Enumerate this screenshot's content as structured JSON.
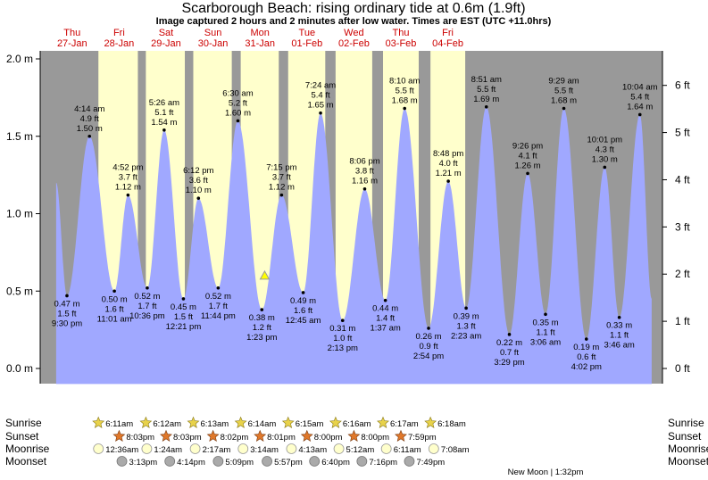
{
  "header": {
    "title": "Scarborough Beach: rising  ordinary tide at 0.6m (1.9ft)",
    "subtitle": "Image captured 2 hours and 2 minutes after low water. Times are EST (UTC +11.0hrs)"
  },
  "colors": {
    "night": "#999999",
    "day": "#ffffcc",
    "tide": "#a0a8ff",
    "day_label": "#cc0000",
    "marker": "#ffff00"
  },
  "chart_data": {
    "type": "area",
    "title": "Scarborough Beach: rising  ordinary tide at 0.6m (1.9ft)",
    "units_left": "m",
    "units_right": "ft",
    "ylim": [
      -0.15,
      2.07
    ],
    "left_ticks": [
      {
        "value": 0.0,
        "label": "0.0 m"
      },
      {
        "value": 0.5,
        "label": "0.5 m"
      },
      {
        "value": 1.0,
        "label": "1.0 m"
      },
      {
        "value": 1.5,
        "label": "1.5 m"
      },
      {
        "value": 2.0,
        "label": "2.0 m"
      }
    ],
    "right_ticks": [
      {
        "value": 0,
        "label": "0 ft"
      },
      {
        "value": 1,
        "label": "1 ft"
      },
      {
        "value": 2,
        "label": "2 ft"
      },
      {
        "value": 3,
        "label": "3 ft"
      },
      {
        "value": 4,
        "label": "4 ft"
      },
      {
        "value": 5,
        "label": "5 ft"
      },
      {
        "value": 6,
        "label": "6 ft"
      }
    ],
    "days": [
      {
        "dow": "Thu",
        "date": "27-Jan",
        "t": 0.68
      },
      {
        "dow": "Fri",
        "date": "28-Jan",
        "t": 1.68
      },
      {
        "dow": "Sat",
        "date": "29-Jan",
        "t": 2.68
      },
      {
        "dow": "Sun",
        "date": "30-Jan",
        "t": 3.68
      },
      {
        "dow": "Mon",
        "date": "31-Jan",
        "t": 4.68
      },
      {
        "dow": "Tue",
        "date": "01-Feb",
        "t": 5.68
      },
      {
        "dow": "Wed",
        "date": "02-Feb",
        "t": 6.68
      },
      {
        "dow": "Thu",
        "date": "03-Feb",
        "t": 7.68
      },
      {
        "dow": "Fri",
        "date": "04-Feb",
        "t": 8.68
      }
    ],
    "current": {
      "t": 4.78,
      "h": 0.6
    },
    "tides": [
      {
        "t": 0.34,
        "h": 1.2,
        "label": [
          "",
          "",
          ""
        ],
        "side": "none"
      },
      {
        "t": 0.57,
        "h": 0.47,
        "label": [
          "0.47 m",
          "1.5 ft",
          "9:30 pm"
        ],
        "side": "below"
      },
      {
        "t": 1.05,
        "h": 1.5,
        "label": [
          "4:14 am",
          "4.9 ft",
          "1.50 m"
        ],
        "side": "above"
      },
      {
        "t": 1.58,
        "h": 0.5,
        "label": [
          "0.50 m",
          "1.6 ft",
          "11:01 am"
        ],
        "side": "below"
      },
      {
        "t": 1.87,
        "h": 1.12,
        "label": [
          "4:52 pm",
          "3.7 ft",
          "1.12 m"
        ],
        "side": "above"
      },
      {
        "t": 2.28,
        "h": 0.52,
        "label": [
          "0.52 m",
          "1.7 ft",
          "10:36 pm"
        ],
        "side": "below"
      },
      {
        "t": 2.64,
        "h": 1.54,
        "label": [
          "5:26 am",
          "5.1 ft",
          "1.54 m"
        ],
        "side": "above"
      },
      {
        "t": 3.05,
        "h": 0.45,
        "label": [
          "0.45 m",
          "1.5 ft",
          "12:21 pm"
        ],
        "side": "below"
      },
      {
        "t": 3.37,
        "h": 1.1,
        "label": [
          "6:12 pm",
          "3.6 ft",
          "1.10 m"
        ],
        "side": "above"
      },
      {
        "t": 3.79,
        "h": 0.52,
        "label": [
          "0.52 m",
          "1.7 ft",
          "11:44 pm"
        ],
        "side": "below"
      },
      {
        "t": 4.21,
        "h": 1.6,
        "label": [
          "6:30 am",
          "5.2 ft",
          "1.60 m"
        ],
        "side": "above"
      },
      {
        "t": 4.72,
        "h": 0.38,
        "label": [
          "0.38 m",
          "1.2 ft",
          "1:23 pm"
        ],
        "side": "below"
      },
      {
        "t": 5.14,
        "h": 1.12,
        "label": [
          "7:15 pm",
          "3.7 ft",
          "1.12 m"
        ],
        "side": "above"
      },
      {
        "t": 5.6,
        "h": 0.49,
        "label": [
          "0.49 m",
          "1.6 ft",
          "12:45 am"
        ],
        "side": "below"
      },
      {
        "t": 5.97,
        "h": 1.65,
        "label": [
          "7:24 am",
          "5.4 ft",
          "1.65 m"
        ],
        "side": "above"
      },
      {
        "t": 6.44,
        "h": 0.31,
        "label": [
          "0.31 m",
          "1.0 ft",
          "2:13 pm"
        ],
        "side": "below"
      },
      {
        "t": 6.91,
        "h": 1.16,
        "label": [
          "8:06 pm",
          "3.8 ft",
          "1.16 m"
        ],
        "side": "above"
      },
      {
        "t": 7.35,
        "h": 0.44,
        "label": [
          "0.44 m",
          "1.4 ft",
          "1:37 am"
        ],
        "side": "below"
      },
      {
        "t": 7.76,
        "h": 1.68,
        "label": [
          "8:10 am",
          "5.5 ft",
          "1.68 m"
        ],
        "side": "above"
      },
      {
        "t": 8.27,
        "h": 0.26,
        "label": [
          "0.26 m",
          "0.9 ft",
          "2:54 pm"
        ],
        "side": "below"
      },
      {
        "t": 8.69,
        "h": 1.21,
        "label": [
          "8:48 pm",
          "4.0 ft",
          "1.21 m"
        ],
        "side": "above"
      },
      {
        "t": 9.07,
        "h": 0.39,
        "label": [
          "0.39 m",
          "1.3 ft",
          "2:23 am"
        ],
        "side": "below"
      },
      {
        "t": 9.5,
        "h": 1.69,
        "label": [
          "8:51 am",
          "5.5 ft",
          "1.69 m"
        ],
        "side": "above"
      },
      {
        "t": 9.99,
        "h": 0.22,
        "label": [
          "0.22 m",
          "0.7 ft",
          "3:29 pm"
        ],
        "side": "below"
      },
      {
        "t": 10.38,
        "h": 1.26,
        "label": [
          "9:26 pm",
          "4.1 ft",
          "1.26 m"
        ],
        "side": "above"
      },
      {
        "t": 10.76,
        "h": 0.35,
        "label": [
          "0.35 m",
          "1.1 ft",
          "3:06 am"
        ],
        "side": "below"
      },
      {
        "t": 11.15,
        "h": 1.68,
        "label": [
          "9:29 am",
          "5.5 ft",
          "1.68 m"
        ],
        "side": "above"
      },
      {
        "t": 11.63,
        "h": 0.19,
        "label": [
          "0.19 m",
          "0.6 ft",
          "4:02 pm"
        ],
        "side": "below"
      },
      {
        "t": 12.02,
        "h": 1.3,
        "label": [
          "10:01 pm",
          "4.3 ft",
          "1.30 m"
        ],
        "side": "above"
      },
      {
        "t": 12.33,
        "h": 0.33,
        "label": [
          "0.33 m",
          "1.1 ft",
          "3:46 am"
        ],
        "side": "below"
      },
      {
        "t": 12.77,
        "h": 1.64,
        "label": [
          "10:04 am",
          "5.4 ft",
          "1.64 m"
        ],
        "side": "above"
      },
      {
        "t": 13.02,
        "h": 0.45,
        "label": [
          "",
          "",
          ""
        ],
        "side": "none"
      }
    ],
    "daylight": [
      [
        -0.1,
        0.0
      ],
      [
        1.24,
        2.08
      ],
      [
        2.25,
        3.08
      ],
      [
        3.26,
        4.08
      ],
      [
        4.27,
        5.08
      ],
      [
        5.28,
        6.07
      ],
      [
        6.29,
        7.07
      ],
      [
        7.3,
        8.06
      ],
      [
        8.31,
        9.05
      ]
    ],
    "sunrise": [
      {
        "t": 1.24,
        "label": "6:11am"
      },
      {
        "t": 2.25,
        "label": "6:12am"
      },
      {
        "t": 3.26,
        "label": "6:13am"
      },
      {
        "t": 4.27,
        "label": "6:14am"
      },
      {
        "t": 5.28,
        "label": "6:15am"
      },
      {
        "t": 6.29,
        "label": "6:16am"
      },
      {
        "t": 7.3,
        "label": "6:17am"
      },
      {
        "t": 8.31,
        "label": "6:18am"
      }
    ],
    "sunset": [
      {
        "t": 1.68,
        "label": "8:03pm"
      },
      {
        "t": 2.68,
        "label": "8:03pm"
      },
      {
        "t": 3.68,
        "label": "8:02pm"
      },
      {
        "t": 4.68,
        "label": "8:01pm"
      },
      {
        "t": 5.68,
        "label": "8:00pm"
      },
      {
        "t": 6.68,
        "label": "8:00pm"
      },
      {
        "t": 7.68,
        "label": "7:59pm"
      }
    ],
    "moonrise": [
      {
        "t": 1.24,
        "label": "12:36am"
      },
      {
        "t": 2.27,
        "label": "1:24am"
      },
      {
        "t": 3.3,
        "label": "2:17am"
      },
      {
        "t": 4.32,
        "label": "3:14am"
      },
      {
        "t": 5.35,
        "label": "4:13am"
      },
      {
        "t": 6.36,
        "label": "5:12am"
      },
      {
        "t": 7.37,
        "label": "6:11am"
      },
      {
        "t": 8.38,
        "label": "7:08am"
      }
    ],
    "moonset": [
      {
        "t": 1.74,
        "label": "3:13pm"
      },
      {
        "t": 2.76,
        "label": "4:14pm"
      },
      {
        "t": 3.79,
        "label": "5:09pm"
      },
      {
        "t": 4.83,
        "label": "5:57pm"
      },
      {
        "t": 5.84,
        "label": "6:40pm"
      },
      {
        "t": 6.85,
        "label": "7:16pm"
      },
      {
        "t": 7.86,
        "label": "7:49pm"
      }
    ],
    "rows": {
      "sunrise": "Sunrise",
      "sunset": "Sunset",
      "moonrise": "Moonrise",
      "moonset": "Moonset"
    },
    "new_moon": "New Moon | 1:32pm"
  }
}
